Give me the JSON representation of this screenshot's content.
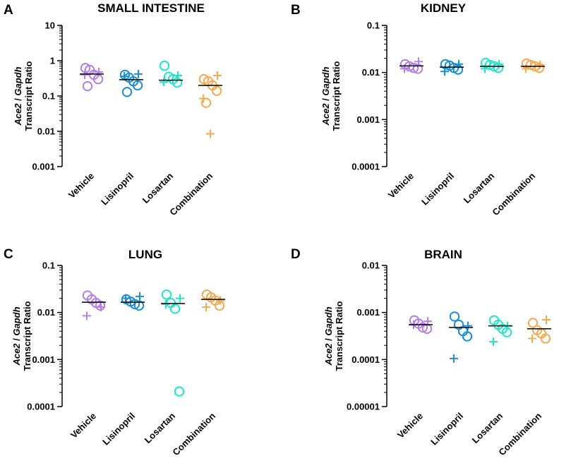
{
  "chart_data": [
    {
      "type": "scatter",
      "panel": "A",
      "title": "SMALL INTESTINE",
      "ylabel_line1": [
        "Ace2",
        " / ",
        "Gapdh"
      ],
      "ylabel_line2": "Transcript Ratio",
      "yscale": "log",
      "ylim": [
        0.001,
        10
      ],
      "yticks": [
        0.001,
        0.01,
        0.1,
        1,
        10
      ],
      "ytick_labels": [
        "0.001",
        "0.01",
        "0.1",
        "1",
        "10"
      ],
      "categories": [
        "Vehicle",
        "Lisinopril",
        "Losartan",
        "Combination"
      ],
      "series": [
        {
          "name": "Vehicle",
          "color": "#b57ee8",
          "median": 0.42,
          "circles": [
            0.62,
            0.55,
            0.4,
            0.3,
            0.19
          ],
          "plus": [
            0.48,
            0.4
          ]
        },
        {
          "name": "Lisinopril",
          "color": "#1a8fd6",
          "median": 0.29,
          "circles": [
            0.4,
            0.33,
            0.26,
            0.2,
            0.13
          ],
          "plus": [
            0.42,
            0.36
          ]
        },
        {
          "name": "Losartan",
          "color": "#1de6cc",
          "median": 0.28,
          "circles": [
            0.72,
            0.35,
            0.3,
            0.24
          ],
          "plus": [
            0.38,
            0.25
          ]
        },
        {
          "name": "Combination",
          "color": "#f7a94d",
          "median": 0.2,
          "circles": [
            0.3,
            0.26,
            0.2,
            0.14,
            0.064
          ],
          "plus": [
            0.38,
            0.085,
            0.0085
          ]
        }
      ]
    },
    {
      "type": "scatter",
      "panel": "B",
      "title": "KIDNEY",
      "ylabel_line1": [
        "Ace2",
        " / ",
        "Gapdh"
      ],
      "ylabel_line2": "Transcript Ratio",
      "yscale": "log",
      "ylim": [
        0.0001,
        0.1
      ],
      "yticks": [
        0.0001,
        0.001,
        0.01,
        0.1
      ],
      "ytick_labels": [
        "0.0001",
        "0.001",
        "0.01",
        "0.1"
      ],
      "categories": [
        "Vehicle",
        "Lisinopril",
        "Losartan",
        "Combination"
      ],
      "series": [
        {
          "name": "Vehicle",
          "color": "#b57ee8",
          "median": 0.0138,
          "circles": [
            0.015,
            0.0135,
            0.0125,
            0.012
          ],
          "plus": [
            0.017,
            0.012
          ]
        },
        {
          "name": "Lisinopril",
          "color": "#1a8fd6",
          "median": 0.013,
          "circles": [
            0.015,
            0.014,
            0.0125,
            0.0115
          ],
          "plus": [
            0.015,
            0.0105
          ]
        },
        {
          "name": "Losartan",
          "color": "#1de6cc",
          "median": 0.0135,
          "circles": [
            0.016,
            0.0145,
            0.0135,
            0.0125
          ],
          "plus": [
            0.015,
            0.012
          ]
        },
        {
          "name": "Combination",
          "color": "#f7a94d",
          "median": 0.0135,
          "circles": [
            0.0155,
            0.0145,
            0.0135,
            0.0125
          ],
          "plus": [
            0.0145,
            0.012
          ]
        }
      ]
    },
    {
      "type": "scatter",
      "panel": "C",
      "title": "LUNG",
      "ylabel_line1": [
        "Ace2",
        " / ",
        "Gapdh"
      ],
      "ylabel_line2": "Transcript Ratio",
      "yscale": "log",
      "ylim": [
        0.0001,
        0.1
      ],
      "yticks": [
        0.0001,
        0.001,
        0.01,
        0.1
      ],
      "ytick_labels": [
        "0.0001",
        "0.001",
        "0.01",
        "0.1"
      ],
      "categories": [
        "Vehicle",
        "Lisinopril",
        "Losartan",
        "Combination"
      ],
      "series": [
        {
          "name": "Vehicle",
          "color": "#b57ee8",
          "median": 0.0165,
          "circles": [
            0.023,
            0.019,
            0.016,
            0.014
          ],
          "plus": [
            0.013,
            0.0085
          ]
        },
        {
          "name": "Lisinopril",
          "color": "#1a8fd6",
          "median": 0.0165,
          "circles": [
            0.019,
            0.017,
            0.015,
            0.014
          ],
          "plus": [
            0.022,
            0.02
          ]
        },
        {
          "name": "Losartan",
          "color": "#1de6cc",
          "median": 0.0155,
          "circles": [
            0.024,
            0.016,
            0.012,
            0.00021
          ],
          "plus": [
            0.02,
            0.015
          ]
        },
        {
          "name": "Combination",
          "color": "#f7a94d",
          "median": 0.019,
          "circles": [
            0.024,
            0.021,
            0.018,
            0.014
          ],
          "plus": [
            0.018,
            0.013
          ]
        }
      ]
    },
    {
      "type": "scatter",
      "panel": "D",
      "title": "BRAIN",
      "ylabel_line1": [
        "Ace2",
        " / ",
        "Gapdh"
      ],
      "ylabel_line2": "Transcript Ratio",
      "yscale": "log",
      "ylim": [
        1e-05,
        0.01
      ],
      "yticks": [
        1e-05,
        0.0001,
        0.001,
        0.01
      ],
      "ytick_labels": [
        "0.00001",
        "0.0001",
        "0.001",
        "0.01"
      ],
      "categories": [
        "Vehicle",
        "Lisinopril",
        "Losartan",
        "Combination"
      ],
      "series": [
        {
          "name": "Vehicle",
          "color": "#b57ee8",
          "median": 0.00055,
          "circles": [
            0.00068,
            0.00058,
            0.00048,
            0.00045
          ],
          "plus": [
            0.00065,
            0.00055
          ]
        },
        {
          "name": "Lisinopril",
          "color": "#1a8fd6",
          "median": 0.00048,
          "circles": [
            0.00082,
            0.00055,
            0.0004,
            0.00031
          ],
          "plus": [
            0.00052,
            0.000105
          ]
        },
        {
          "name": "Losartan",
          "color": "#1de6cc",
          "median": 0.00052,
          "circles": [
            0.00068,
            0.00055,
            0.00045,
            0.00038
          ],
          "plus": [
            0.00052,
            0.00024
          ]
        },
        {
          "name": "Combination",
          "color": "#f7a94d",
          "median": 0.00045,
          "circles": [
            0.0006,
            0.00042,
            0.00036,
            0.00028
          ],
          "plus": [
            0.0007,
            0.00028
          ]
        }
      ]
    }
  ]
}
